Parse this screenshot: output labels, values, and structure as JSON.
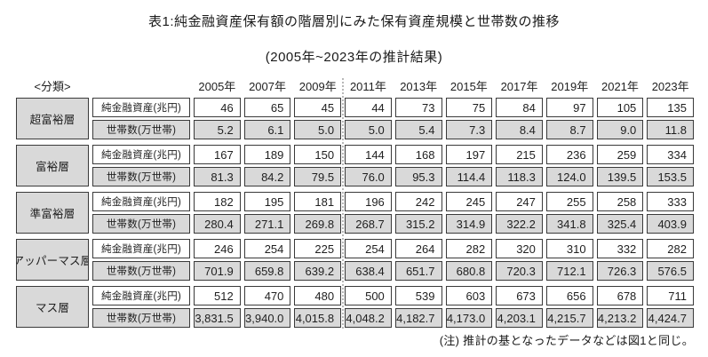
{
  "title": "表1:純金融資産保有額の階層別にみた保有資産規模と世帯数の推移",
  "subtitle": "(2005年~2023年の推計結果)",
  "classification_label": "<分類>",
  "note": "(注) 推計の基となったデータなどは図1と同じ。",
  "row_labels": {
    "assets": "純金融資産(兆円)",
    "households": "世帯数(万世帯)"
  },
  "years": [
    "2005年",
    "2007年",
    "2009年",
    "2011年",
    "2013年",
    "2015年",
    "2017年",
    "2019年",
    "2021年",
    "2023年"
  ],
  "tiers": [
    {
      "name": "超富裕層",
      "assets": [
        "46",
        "65",
        "45",
        "44",
        "73",
        "75",
        "84",
        "97",
        "105",
        "135"
      ],
      "households": [
        "5.2",
        "6.1",
        "5.0",
        "5.0",
        "5.4",
        "7.3",
        "8.4",
        "8.7",
        "9.0",
        "11.8"
      ]
    },
    {
      "name": "富裕層",
      "assets": [
        "167",
        "189",
        "150",
        "144",
        "168",
        "197",
        "215",
        "236",
        "259",
        "334"
      ],
      "households": [
        "81.3",
        "84.2",
        "79.5",
        "76.0",
        "95.3",
        "114.4",
        "118.3",
        "124.0",
        "139.5",
        "153.5"
      ]
    },
    {
      "name": "準富裕層",
      "assets": [
        "182",
        "195",
        "181",
        "196",
        "242",
        "245",
        "247",
        "255",
        "258",
        "333"
      ],
      "households": [
        "280.4",
        "271.1",
        "269.8",
        "268.7",
        "315.2",
        "314.9",
        "322.2",
        "341.8",
        "325.4",
        "403.9"
      ]
    },
    {
      "name": "アッパーマス層",
      "assets": [
        "246",
        "254",
        "225",
        "254",
        "264",
        "282",
        "320",
        "310",
        "332",
        "282"
      ],
      "households": [
        "701.9",
        "659.8",
        "639.2",
        "638.4",
        "651.7",
        "680.8",
        "720.3",
        "712.1",
        "726.3",
        "576.5"
      ]
    },
    {
      "name": "マス層",
      "assets": [
        "512",
        "470",
        "480",
        "500",
        "539",
        "603",
        "673",
        "656",
        "678",
        "711"
      ],
      "households": [
        "3,831.5",
        "3,940.0",
        "4,015.8",
        "4,048.2",
        "4,182.7",
        "4,173.0",
        "4,203.1",
        "4,215.7",
        "4,213.2",
        "4,424.7"
      ]
    }
  ],
  "colors": {
    "cell_gray": "#d9d9d9",
    "border": "#3a3a3a",
    "separator": "#b8b8b8"
  },
  "chart_data": {
    "type": "table",
    "title": "表1:純金融資産保有額の階層別にみた保有資産規模と世帯数の推移",
    "subtitle": "(2005年~2023年の推計結果)",
    "columns": [
      "2005年",
      "2007年",
      "2009年",
      "2011年",
      "2013年",
      "2015年",
      "2017年",
      "2019年",
      "2021年",
      "2023年"
    ],
    "rows": [
      {
        "tier": "超富裕層",
        "metric": "純金融資産(兆円)",
        "values": [
          46,
          65,
          45,
          44,
          73,
          75,
          84,
          97,
          105,
          135
        ]
      },
      {
        "tier": "超富裕層",
        "metric": "世帯数(万世帯)",
        "values": [
          5.2,
          6.1,
          5.0,
          5.0,
          5.4,
          7.3,
          8.4,
          8.7,
          9.0,
          11.8
        ]
      },
      {
        "tier": "富裕層",
        "metric": "純金融資産(兆円)",
        "values": [
          167,
          189,
          150,
          144,
          168,
          197,
          215,
          236,
          259,
          334
        ]
      },
      {
        "tier": "富裕層",
        "metric": "世帯数(万世帯)",
        "values": [
          81.3,
          84.2,
          79.5,
          76.0,
          95.3,
          114.4,
          118.3,
          124.0,
          139.5,
          153.5
        ]
      },
      {
        "tier": "準富裕層",
        "metric": "純金融資産(兆円)",
        "values": [
          182,
          195,
          181,
          196,
          242,
          245,
          247,
          255,
          258,
          333
        ]
      },
      {
        "tier": "準富裕層",
        "metric": "世帯数(万世帯)",
        "values": [
          280.4,
          271.1,
          269.8,
          268.7,
          315.2,
          314.9,
          322.2,
          341.8,
          325.4,
          403.9
        ]
      },
      {
        "tier": "アッパーマス層",
        "metric": "純金融資産(兆円)",
        "values": [
          246,
          254,
          225,
          254,
          264,
          282,
          320,
          310,
          332,
          282
        ]
      },
      {
        "tier": "アッパーマス層",
        "metric": "世帯数(万世帯)",
        "values": [
          701.9,
          659.8,
          639.2,
          638.4,
          651.7,
          680.8,
          720.3,
          712.1,
          726.3,
          576.5
        ]
      },
      {
        "tier": "マス層",
        "metric": "純金融資産(兆円)",
        "values": [
          512,
          470,
          480,
          500,
          539,
          603,
          673,
          656,
          678,
          711
        ]
      },
      {
        "tier": "マス層",
        "metric": "世帯数(万世帯)",
        "values": [
          3831.5,
          3940.0,
          4015.8,
          4048.2,
          4182.7,
          4173.0,
          4203.1,
          4215.7,
          4213.2,
          4424.7
        ]
      }
    ],
    "notes": "(注) 推計の基となったデータなどは図1と同じ。",
    "layout": {
      "period_break_after_column": "2009年",
      "separator_style": "dotted"
    }
  }
}
